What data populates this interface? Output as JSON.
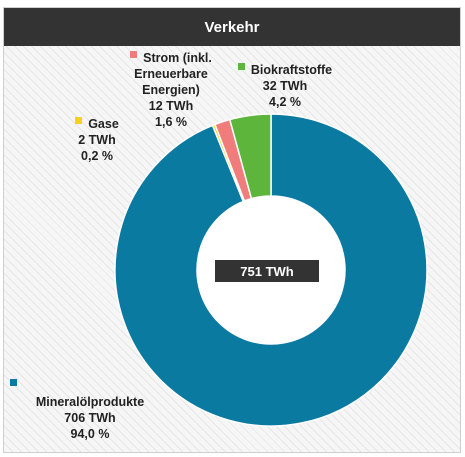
{
  "chart_data": {
    "type": "pie",
    "title": "Verkehr",
    "total_label": "751 TWh",
    "series": [
      {
        "name": "Mineralölprodukte",
        "value": 706,
        "value_label": "706 TWh",
        "percent_label": "94,0 %",
        "color": "#0a7aa1"
      },
      {
        "name": "Gase",
        "value": 2,
        "value_label": "2 TWh",
        "percent_label": "0,2 %",
        "color": "#f4d21f"
      },
      {
        "name": "Strom (inkl. Erneuerbare Energien)",
        "value": 12,
        "value_label": "12 TWh",
        "percent_label": "1,6 %",
        "color": "#f07c7c"
      },
      {
        "name": "Biokraftstoffe",
        "value": 32,
        "value_label": "32 TWh",
        "percent_label": "4,2 %",
        "color": "#5db53b"
      }
    ],
    "legend_placement": "around slices"
  },
  "labels": {
    "strom_lines": [
      "Strom (inkl.",
      "Erneuerbare",
      "Energien)"
    ]
  }
}
